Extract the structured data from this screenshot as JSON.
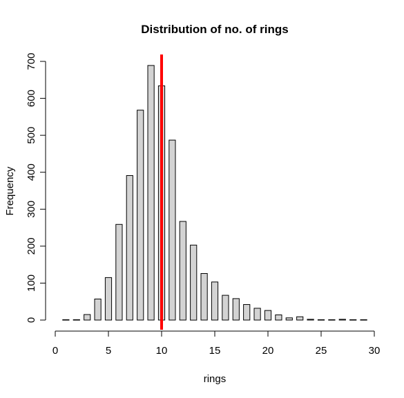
{
  "chart_data": {
    "type": "bar",
    "title": "Distribution of no. of rings",
    "xlabel": "rings",
    "ylabel": "Frequency",
    "xlim": [
      0,
      30
    ],
    "ylim": [
      0,
      700
    ],
    "x_ticks": [
      "0",
      "5",
      "10",
      "15",
      "20",
      "25",
      "30"
    ],
    "y_ticks": [
      "0",
      "100",
      "200",
      "300",
      "400",
      "500",
      "600",
      "700"
    ],
    "x": [
      1,
      2,
      3,
      4,
      5,
      6,
      7,
      8,
      9,
      10,
      11,
      12,
      13,
      14,
      15,
      16,
      17,
      18,
      19,
      20,
      21,
      22,
      23,
      24,
      25,
      26,
      27,
      28,
      29
    ],
    "values": [
      1,
      1,
      15,
      57,
      115,
      259,
      391,
      568,
      689,
      634,
      487,
      267,
      203,
      126,
      103,
      67,
      58,
      42,
      32,
      26,
      14,
      6,
      9,
      2,
      1,
      1,
      2,
      1,
      1
    ],
    "bar_fill": "#d3d3d3",
    "bar_stroke": "#000000",
    "vline": {
      "x": 10,
      "color": "#ff0000"
    },
    "grid": false
  }
}
